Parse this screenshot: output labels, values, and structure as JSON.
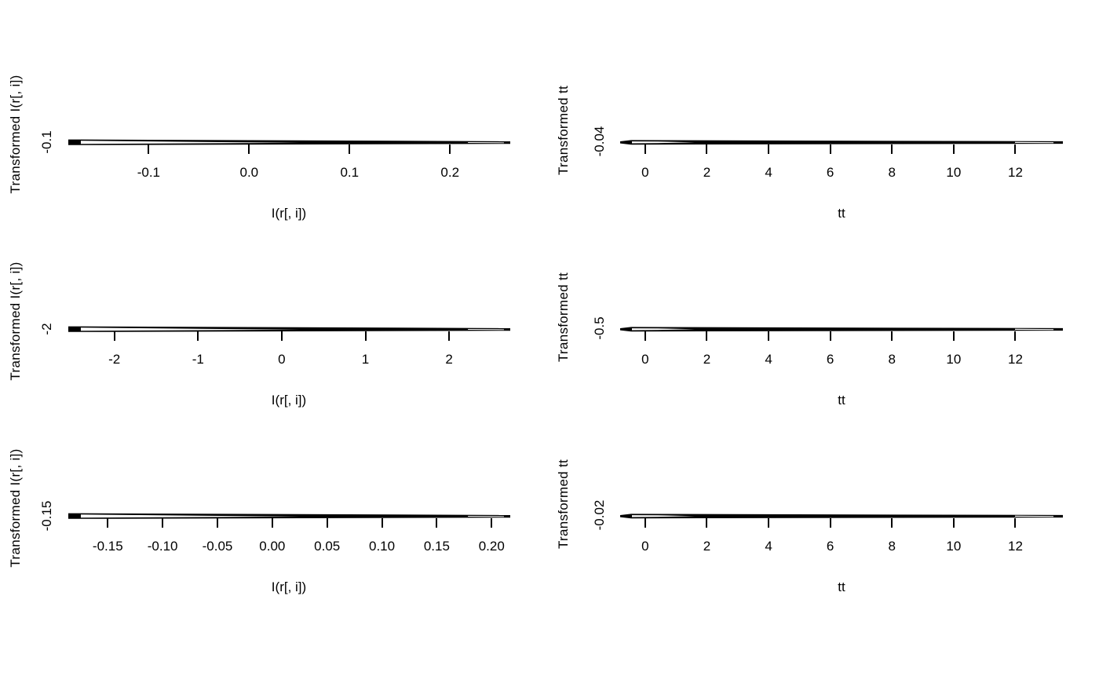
{
  "figure": {
    "layout": "3x2 grid of base-R style transformation scatter plots",
    "background_color": "#ffffff",
    "foreground_color": "#000000",
    "grid": "off",
    "legend": "none",
    "description": "Each panel's data collapses into a thin flat horizontal black band at the single labeled y level, with small white slivers where overplotted line bundles diverge near the band ends."
  },
  "chart_data": [
    {
      "position": "top-left",
      "type": "scatter",
      "title": "",
      "xlabel": "I(r[, i])",
      "ylabel": "Transformed I(r[, i])",
      "y_tick_label": "-0.1",
      "band_y": -0.1,
      "xlim": [
        -0.18,
        0.26
      ],
      "x_ticks": [
        {
          "value": -0.1,
          "label": "-0.1"
        },
        {
          "value": 0.0,
          "label": "0.0"
        },
        {
          "value": 0.1,
          "label": "0.1"
        },
        {
          "value": 0.2,
          "label": "0.2"
        }
      ]
    },
    {
      "position": "top-right",
      "type": "scatter",
      "title": "",
      "xlabel": "tt",
      "ylabel": "Transformed tt",
      "y_tick_label": "-0.04",
      "band_y": -0.04,
      "xlim": [
        -0.81,
        13.54
      ],
      "x_ticks": [
        {
          "value": 0,
          "label": "0"
        },
        {
          "value": 2,
          "label": "2"
        },
        {
          "value": 4,
          "label": "4"
        },
        {
          "value": 6,
          "label": "6"
        },
        {
          "value": 8,
          "label": "8"
        },
        {
          "value": 10,
          "label": "10"
        },
        {
          "value": 12,
          "label": "12"
        }
      ]
    },
    {
      "position": "middle-left",
      "type": "scatter",
      "title": "",
      "xlabel": "I(r[, i])",
      "ylabel": "Transformed I(r[, i])",
      "y_tick_label": "-2",
      "band_y": -2,
      "xlim": [
        -2.55,
        2.73
      ],
      "x_ticks": [
        {
          "value": -2,
          "label": "-2"
        },
        {
          "value": -1,
          "label": "-1"
        },
        {
          "value": 0,
          "label": "0"
        },
        {
          "value": 1,
          "label": "1"
        },
        {
          "value": 2,
          "label": "2"
        }
      ]
    },
    {
      "position": "middle-right",
      "type": "scatter",
      "title": "",
      "xlabel": "tt",
      "ylabel": "Transformed tt",
      "y_tick_label": "-0.5",
      "band_y": -0.5,
      "xlim": [
        -0.81,
        13.54
      ],
      "x_ticks": [
        {
          "value": 0,
          "label": "0"
        },
        {
          "value": 2,
          "label": "2"
        },
        {
          "value": 4,
          "label": "4"
        },
        {
          "value": 6,
          "label": "6"
        },
        {
          "value": 8,
          "label": "8"
        },
        {
          "value": 10,
          "label": "10"
        },
        {
          "value": 12,
          "label": "12"
        }
      ]
    },
    {
      "position": "bottom-left",
      "type": "scatter",
      "title": "",
      "xlabel": "I(r[, i])",
      "ylabel": "Transformed I(r[, i])",
      "y_tick_label": "-0.15",
      "band_y": -0.15,
      "xlim": [
        -0.186,
        0.217
      ],
      "x_ticks": [
        {
          "value": -0.15,
          "label": "-0.15"
        },
        {
          "value": -0.1,
          "label": "-0.10"
        },
        {
          "value": -0.05,
          "label": "-0.05"
        },
        {
          "value": 0.0,
          "label": "0.00"
        },
        {
          "value": 0.05,
          "label": "0.05"
        },
        {
          "value": 0.1,
          "label": "0.10"
        },
        {
          "value": 0.15,
          "label": "0.15"
        },
        {
          "value": 0.2,
          "label": "0.20"
        }
      ]
    },
    {
      "position": "bottom-right",
      "type": "scatter",
      "title": "",
      "xlabel": "tt",
      "ylabel": "Transformed tt",
      "y_tick_label": "-0.02",
      "band_y": -0.02,
      "xlim": [
        -0.81,
        13.54
      ],
      "x_ticks": [
        {
          "value": 0,
          "label": "0"
        },
        {
          "value": 2,
          "label": "2"
        },
        {
          "value": 4,
          "label": "4"
        },
        {
          "value": 6,
          "label": "6"
        },
        {
          "value": 8,
          "label": "8"
        },
        {
          "value": 10,
          "label": "10"
        },
        {
          "value": 12,
          "label": "12"
        }
      ]
    }
  ]
}
